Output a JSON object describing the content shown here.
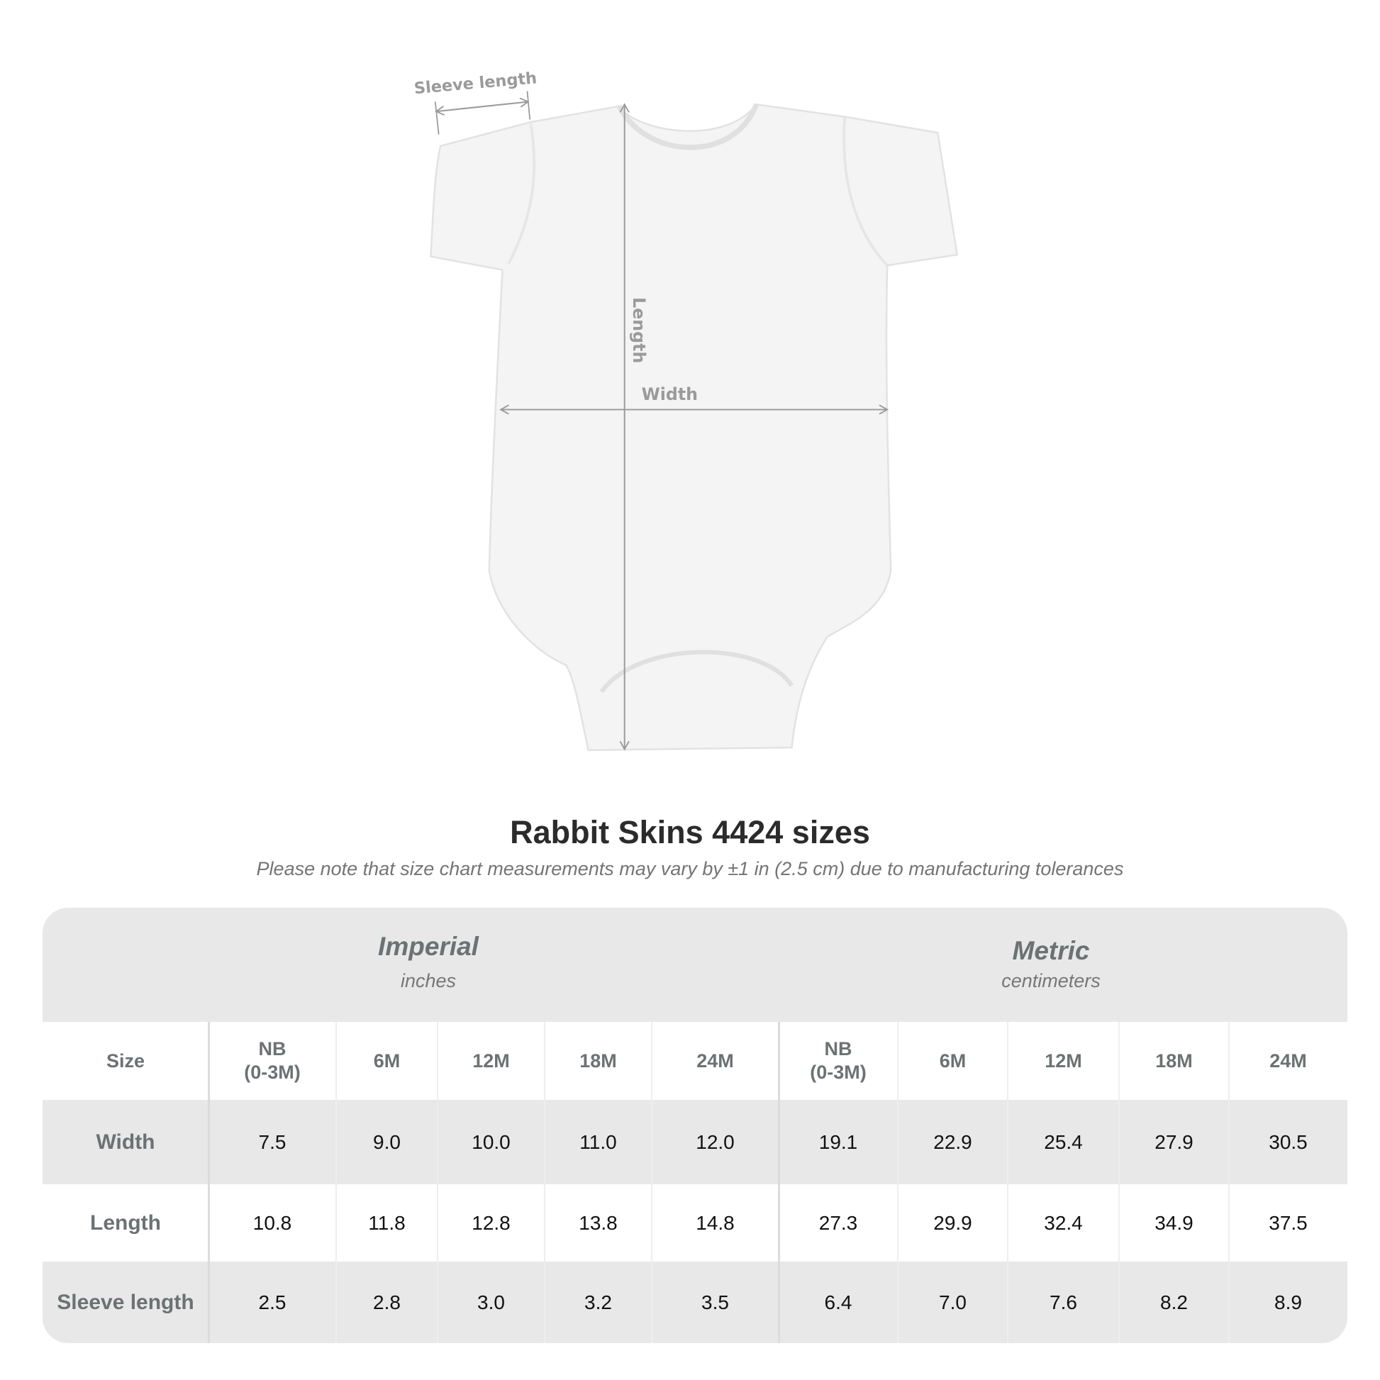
{
  "diagram": {
    "sleeve_label": "Sleeve length",
    "length_label": "Length",
    "width_label": "Width"
  },
  "title": "Rabbit Skins 4424 sizes",
  "subtitle": "Please note that size chart measurements may vary by ±1 in (2.5 cm) due to manufacturing tolerances",
  "table": {
    "imperial": {
      "name": "Imperial",
      "unit": "inches"
    },
    "metric": {
      "name": "Metric",
      "unit": "centimeters"
    },
    "size_label": "Size",
    "sizes": [
      "NB\n(0-3M)",
      "6M",
      "12M",
      "18M",
      "24M"
    ],
    "rows": [
      {
        "label": "Width",
        "imperial": [
          "7.5",
          "9.0",
          "10.0",
          "11.0",
          "12.0"
        ],
        "metric": [
          "19.1",
          "22.9",
          "25.4",
          "27.9",
          "30.5"
        ]
      },
      {
        "label": "Length",
        "imperial": [
          "10.8",
          "11.8",
          "12.8",
          "13.8",
          "14.8"
        ],
        "metric": [
          "27.3",
          "29.9",
          "32.4",
          "34.9",
          "37.5"
        ]
      },
      {
        "label": "Sleeve length",
        "imperial": [
          "2.5",
          "2.8",
          "3.0",
          "3.2",
          "3.5"
        ],
        "metric": [
          "6.4",
          "7.0",
          "7.6",
          "8.2",
          "8.9"
        ]
      }
    ]
  },
  "colors": {
    "band": "#e8e8e8",
    "label": "#6c7273",
    "measure_line": "#9a9a9a"
  }
}
